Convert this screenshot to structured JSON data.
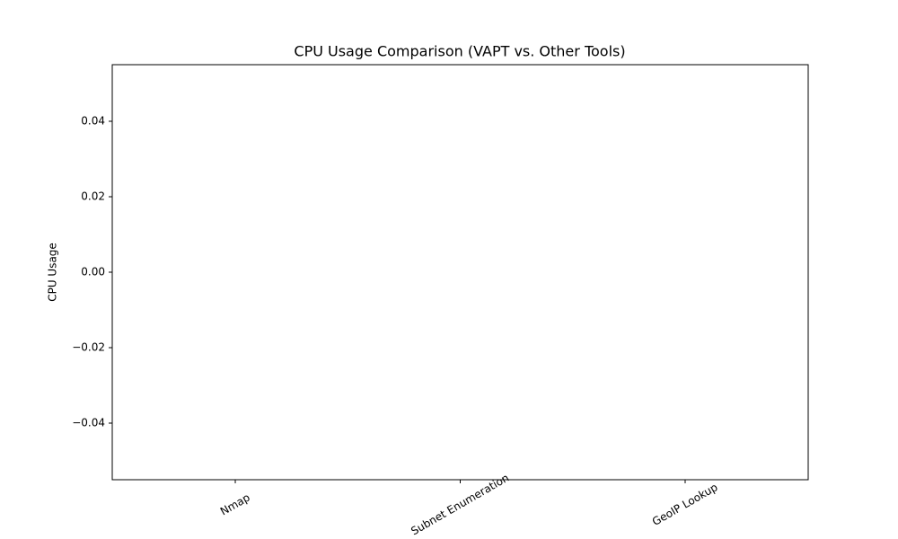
{
  "chart_data": {
    "type": "bar",
    "title": "CPU Usage Comparison (VAPT vs. Other Tools)",
    "y_label": "CPU Usage",
    "categories": [
      "Nmap",
      "Subnet Enumeration",
      "GeoIP Lookup"
    ],
    "values": [
      0,
      0,
      0
    ],
    "color": "#1f77b4",
    "ylim": [
      -0.055,
      0.055
    ],
    "yticks": [
      {
        "value": -0.04,
        "label": "−0.04"
      },
      {
        "value": -0.02,
        "label": "−0.02"
      },
      {
        "value": 0,
        "label": "0.00"
      },
      {
        "value": 0.02,
        "label": "0.02"
      },
      {
        "value": 0.04,
        "label": "0.04"
      }
    ],
    "grid": false
  }
}
